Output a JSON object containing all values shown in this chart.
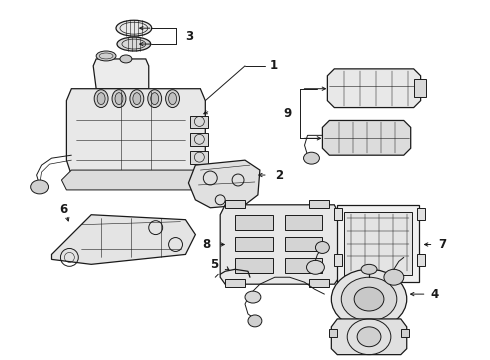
{
  "bg_color": "#ffffff",
  "line_color": "#1a1a1a",
  "figsize": [
    4.9,
    3.6
  ],
  "dpi": 100,
  "label_fontsize": 8.5,
  "label_fontweight": "bold"
}
